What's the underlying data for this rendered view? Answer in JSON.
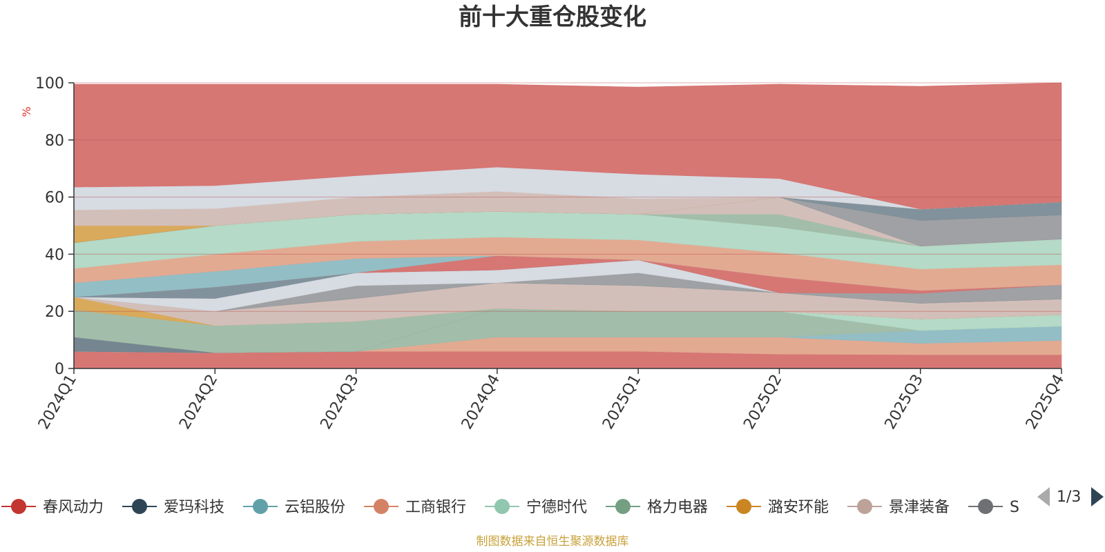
{
  "chart_data": {
    "type": "area",
    "title": "前十大重仓股变化",
    "ylabel": "%",
    "ylim": [
      0,
      100
    ],
    "yticks": [
      0,
      20,
      40,
      60,
      80,
      100
    ],
    "categories": [
      "2024Q1",
      "2024Q2",
      "2024Q3",
      "2024Q4",
      "2025Q1",
      "2025Q2",
      "2025Q3",
      "2025Q4"
    ],
    "layers": [
      {
        "name": "春风动力",
        "color": "#d4706d",
        "values": [
          6,
          5.5,
          6,
          6,
          6,
          5,
          4.8,
          4.8
        ]
      },
      {
        "name": "",
        "color": "#e2a58c",
        "values": [
          0,
          0,
          0,
          5,
          5,
          6,
          4,
          5
        ]
      },
      {
        "name": "",
        "color": "#e0a98f",
        "values": [
          0,
          0,
          0,
          0,
          0,
          0,
          0,
          0
        ]
      },
      {
        "name": "",
        "color": "#8ebac2",
        "values": [
          0,
          0,
          0,
          0,
          0,
          0,
          4.5,
          5
        ]
      },
      {
        "name": "",
        "color": "#9dbba6",
        "values": [
          0,
          0,
          0,
          10,
          9,
          9,
          0,
          0
        ]
      },
      {
        "name": "",
        "color": "#b1d8c4",
        "values": [
          0,
          0,
          0,
          0,
          0,
          0,
          4,
          4
        ]
      },
      {
        "name": "爱玛科技",
        "color": "#6e7f8b",
        "values": [
          5,
          0,
          0,
          0,
          0,
          0,
          0,
          0
        ]
      },
      {
        "name": "格力电器",
        "color": "#9dbba6",
        "values": [
          9.5,
          9.5,
          10.5,
          0,
          0,
          0,
          0,
          0
        ]
      },
      {
        "name": "潞安环能",
        "color": "#d7a553",
        "values": [
          4.5,
          0,
          0,
          0,
          0,
          0,
          0,
          0
        ]
      },
      {
        "name": "景津装备",
        "color": "#d1bcb5",
        "values": [
          0,
          5,
          8,
          9,
          9,
          6.5,
          5.5,
          5.5
        ]
      },
      {
        "name": "",
        "color": "#8f959a",
        "values": [
          0,
          0,
          0,
          0,
          0,
          0,
          0,
          0
        ]
      },
      {
        "name": "",
        "color": "#9a9c9f",
        "values": [
          0,
          0,
          4.5,
          0,
          4.5,
          0,
          3.5,
          5
        ]
      },
      {
        "name": "",
        "color": "#d5d9e0",
        "values": [
          0,
          4.5,
          4.5,
          4.5,
          4.5,
          0,
          0,
          0
        ]
      },
      {
        "name": "",
        "color": "#7b8c97",
        "values": [
          0,
          4,
          0,
          0,
          0,
          0,
          0,
          0
        ]
      },
      {
        "name": "",
        "color": "#d4706d",
        "values": [
          0,
          0,
          0,
          5,
          0,
          5.5,
          1,
          0
        ]
      },
      {
        "name": "云铝股份",
        "color": "#8ebac2",
        "values": [
          5,
          5.5,
          5,
          0,
          0,
          0,
          0,
          0
        ]
      },
      {
        "name": "工商银行",
        "color": "#e2a58c",
        "values": [
          5,
          6,
          6,
          6.5,
          7,
          8.5,
          7.5,
          7
        ]
      },
      {
        "name": "宁德时代",
        "color": "#b1d8c4",
        "values": [
          9,
          10,
          9.5,
          9,
          9,
          9,
          8,
          9
        ]
      },
      {
        "name": "",
        "color": "#9dbba6",
        "values": [
          0,
          0,
          0,
          0,
          0,
          4.5,
          0,
          0
        ]
      },
      {
        "name": "",
        "color": "#d1bcb5",
        "values": [
          0,
          0,
          0,
          0,
          0,
          6,
          0,
          0
        ]
      },
      {
        "name": "",
        "color": "#9a9c9f",
        "values": [
          0,
          0,
          0,
          0,
          0,
          0,
          9,
          8.5
        ]
      },
      {
        "name": "",
        "color": "#8f959a",
        "values": [
          0,
          0,
          0,
          0,
          0,
          0,
          0,
          0
        ]
      },
      {
        "name": "",
        "color": "#7b8c97",
        "values": [
          0,
          0,
          0,
          0,
          0,
          0,
          4,
          4.5
        ]
      },
      {
        "name": "潞安环能",
        "color": "#d7a553",
        "values": [
          6,
          0,
          0,
          0,
          0,
          0,
          0,
          0
        ]
      },
      {
        "name": "",
        "color": "#d1bcb5",
        "values": [
          5.5,
          6,
          6,
          7,
          5.5,
          0,
          0,
          0
        ]
      },
      {
        "name": "",
        "color": "#d5d9e0",
        "values": [
          8,
          8,
          7.5,
          8.5,
          8.5,
          6.5,
          0,
          0
        ]
      },
      {
        "name": "春风动力",
        "color": "#d4706d",
        "values": [
          36,
          35.5,
          32,
          29,
          30.5,
          33,
          43,
          41.7
        ]
      }
    ]
  },
  "legend": {
    "items": [
      {
        "label": "春风动力",
        "color": "#c23531"
      },
      {
        "label": "爱玛科技",
        "color": "#2f4554"
      },
      {
        "label": "云铝股份",
        "color": "#61a0a8"
      },
      {
        "label": "工商银行",
        "color": "#d48265"
      },
      {
        "label": "宁德时代",
        "color": "#91c7ae"
      },
      {
        "label": "格力电器",
        "color": "#749f83"
      },
      {
        "label": "潞安环能",
        "color": "#ca8622"
      },
      {
        "label": "景津装备",
        "color": "#bda29a"
      },
      {
        "label": "S",
        "color": "#6e7074"
      }
    ],
    "page_label": "1/3",
    "prev_icon": "triangle-left-icon",
    "next_icon": "triangle-right-icon"
  },
  "source_note": "制图数据来自恒生聚源数据库"
}
